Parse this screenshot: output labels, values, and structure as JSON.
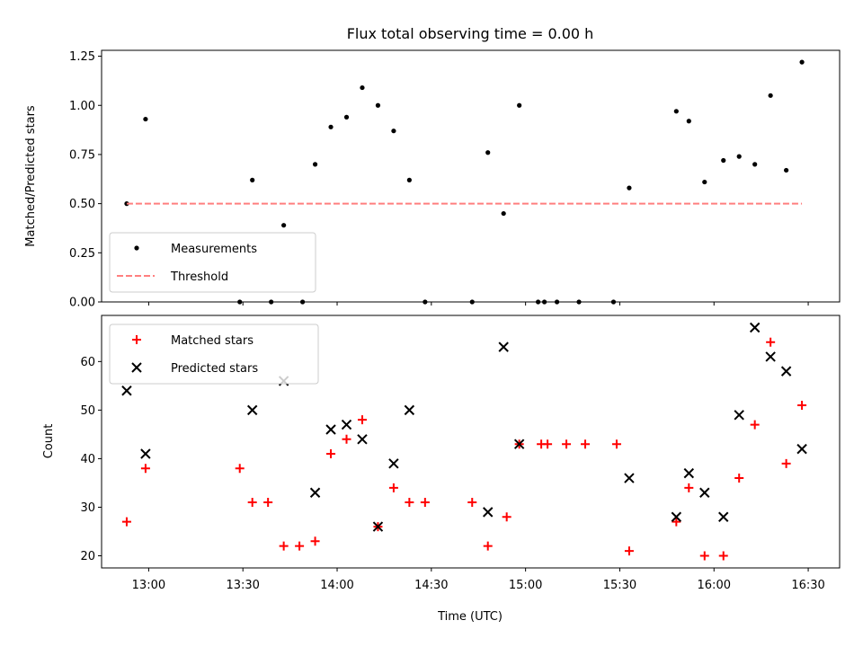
{
  "chart_data": [
    {
      "type": "scatter",
      "title": "Flux total observing time = 0.00 h",
      "xlabel": "",
      "ylabel": "Matched/Predicted stars",
      "xlim": [
        "12:45",
        "16:40"
      ],
      "ylim": [
        0,
        1.28
      ],
      "yticks": [
        "0.00",
        "0.25",
        "0.50",
        "0.75",
        "1.00",
        "1.25"
      ],
      "xticks": [
        "13:00",
        "13:30",
        "14:00",
        "14:30",
        "15:00",
        "15:30",
        "16:00",
        "16:30"
      ],
      "legend_position": "lower-left",
      "series": [
        {
          "name": "Measurements",
          "marker": "dot",
          "color": "#000000",
          "points": [
            [
              "12:53",
              0.5
            ],
            [
              "12:59",
              0.93
            ],
            [
              "13:29",
              0.0
            ],
            [
              "13:33",
              0.62
            ],
            [
              "13:39",
              0.0
            ],
            [
              "13:43",
              0.39
            ],
            [
              "13:49",
              0.0
            ],
            [
              "13:53",
              0.7
            ],
            [
              "13:58",
              0.89
            ],
            [
              "14:03",
              0.94
            ],
            [
              "14:08",
              1.09
            ],
            [
              "14:13",
              1.0
            ],
            [
              "14:18",
              0.87
            ],
            [
              "14:23",
              0.62
            ],
            [
              "14:28",
              0.0
            ],
            [
              "14:43",
              0.0
            ],
            [
              "14:48",
              0.76
            ],
            [
              "14:53",
              0.45
            ],
            [
              "14:58",
              1.0
            ],
            [
              "15:04",
              0.0
            ],
            [
              "15:06",
              0.0
            ],
            [
              "15:10",
              0.0
            ],
            [
              "15:17",
              0.0
            ],
            [
              "15:28",
              0.0
            ],
            [
              "15:33",
              0.58
            ],
            [
              "15:48",
              0.97
            ],
            [
              "15:52",
              0.92
            ],
            [
              "15:57",
              0.61
            ],
            [
              "16:03",
              0.72
            ],
            [
              "16:08",
              0.74
            ],
            [
              "16:13",
              0.7
            ],
            [
              "16:18",
              1.05
            ],
            [
              "16:23",
              0.67
            ],
            [
              "16:28",
              1.22
            ]
          ]
        },
        {
          "name": "Threshold",
          "style": "dashed-line",
          "color": "#ff7f7f",
          "points": [
            [
              "12:53",
              0.5
            ],
            [
              "16:28",
              0.5
            ]
          ]
        }
      ]
    },
    {
      "type": "scatter",
      "title": "",
      "xlabel": "Time (UTC)",
      "ylabel": "Count",
      "xlim": [
        "12:45",
        "16:40"
      ],
      "ylim": [
        17.5,
        69.5
      ],
      "yticks": [
        "20",
        "30",
        "40",
        "50",
        "60"
      ],
      "xticks": [
        "13:00",
        "13:30",
        "14:00",
        "14:30",
        "15:00",
        "15:30",
        "16:00",
        "16:30"
      ],
      "legend_position": "upper-left",
      "series": [
        {
          "name": "Matched stars",
          "marker": "plus",
          "color": "#ff0000",
          "points": [
            [
              "12:53",
              27
            ],
            [
              "12:59",
              38
            ],
            [
              "13:29",
              38
            ],
            [
              "13:33",
              31
            ],
            [
              "13:38",
              31
            ],
            [
              "13:43",
              22
            ],
            [
              "13:48",
              22
            ],
            [
              "13:53",
              23
            ],
            [
              "13:58",
              41
            ],
            [
              "14:03",
              44
            ],
            [
              "14:08",
              48
            ],
            [
              "14:13",
              26
            ],
            [
              "14:18",
              34
            ],
            [
              "14:23",
              31
            ],
            [
              "14:28",
              31
            ],
            [
              "14:43",
              31
            ],
            [
              "14:48",
              22
            ],
            [
              "14:54",
              28
            ],
            [
              "14:58",
              43
            ],
            [
              "15:05",
              43
            ],
            [
              "15:07",
              43
            ],
            [
              "15:13",
              43
            ],
            [
              "15:19",
              43
            ],
            [
              "15:29",
              43
            ],
            [
              "15:33",
              21
            ],
            [
              "15:48",
              27
            ],
            [
              "15:52",
              34
            ],
            [
              "15:57",
              20
            ],
            [
              "16:03",
              20
            ],
            [
              "16:08",
              36
            ],
            [
              "16:13",
              47
            ],
            [
              "16:18",
              64
            ],
            [
              "16:23",
              39
            ],
            [
              "16:28",
              51
            ]
          ]
        },
        {
          "name": "Predicted stars",
          "marker": "x",
          "color": "#000000",
          "points": [
            [
              "12:53",
              54
            ],
            [
              "12:59",
              41
            ],
            [
              "13:33",
              50
            ],
            [
              "13:43",
              56
            ],
            [
              "13:53",
              33
            ],
            [
              "13:58",
              46
            ],
            [
              "14:03",
              47
            ],
            [
              "14:08",
              44
            ],
            [
              "14:13",
              26
            ],
            [
              "14:18",
              39
            ],
            [
              "14:23",
              50
            ],
            [
              "14:48",
              29
            ],
            [
              "14:53",
              63
            ],
            [
              "14:58",
              43
            ],
            [
              "15:33",
              36
            ],
            [
              "15:48",
              28
            ],
            [
              "15:52",
              37
            ],
            [
              "15:57",
              33
            ],
            [
              "16:03",
              28
            ],
            [
              "16:08",
              49
            ],
            [
              "16:13",
              67
            ],
            [
              "16:18",
              61
            ],
            [
              "16:23",
              58
            ],
            [
              "16:28",
              42
            ]
          ]
        }
      ]
    }
  ]
}
